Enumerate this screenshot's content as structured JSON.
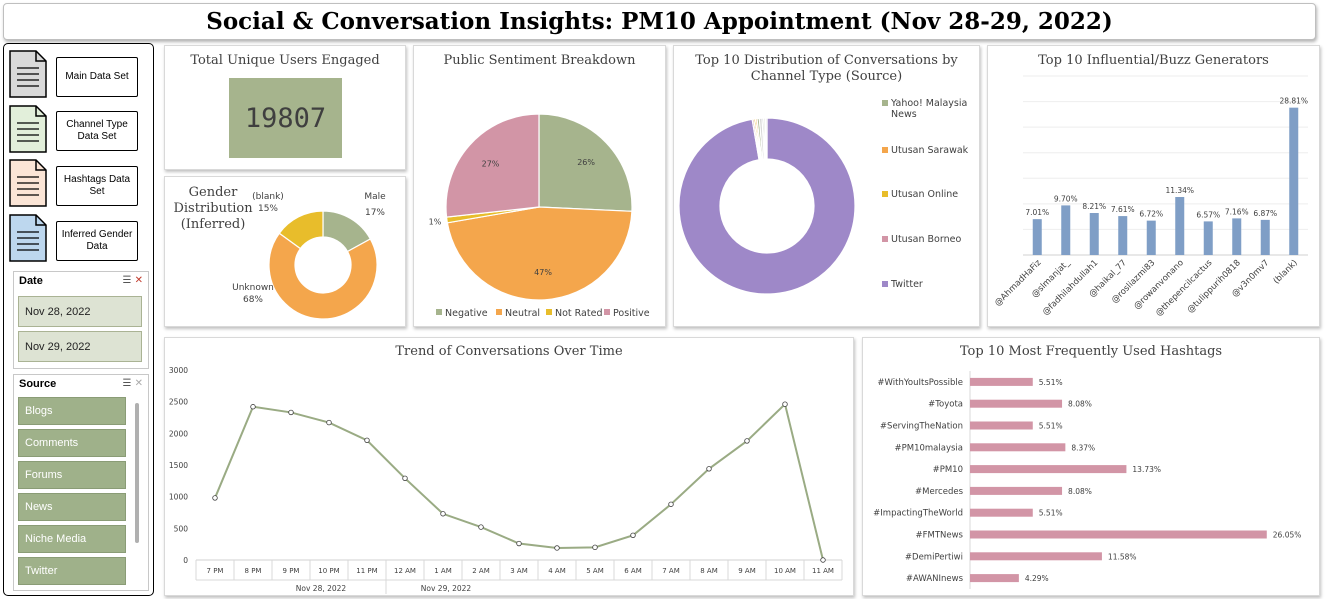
{
  "header": {
    "title": "Social & Conversation Insights: PM10 Appointment (Nov 28-29, 2022)"
  },
  "nav": {
    "buttons": [
      {
        "label": "Main Data Set",
        "color": "#d9d9d9"
      },
      {
        "label": "Channel Type Data Set",
        "color": "#e2efda"
      },
      {
        "label": "Hashtags Data Set",
        "color": "#fbe5d6"
      },
      {
        "label": "Inferred Gender Data",
        "color": "#bdd7ee"
      }
    ]
  },
  "slicers": {
    "date": {
      "title": "Date",
      "items": [
        "Nov 28, 2022",
        "Nov 29, 2022"
      ]
    },
    "source": {
      "title": "Source",
      "items": [
        "Blogs",
        "Comments",
        "Forums",
        "News",
        "Niche Media",
        "Twitter"
      ]
    }
  },
  "kpi": {
    "title": "Total Unique Users Engaged",
    "value": "19807",
    "color": "#a6b48d"
  },
  "gender": {
    "title_lines": [
      "Gender",
      "Distribution",
      "(Inferred)"
    ],
    "chart_data": {
      "type": "doughnut",
      "slices": [
        {
          "name": "Male",
          "value": 17,
          "label": "17%",
          "color": "#a6b48d"
        },
        {
          "name": "Unknown",
          "value": 68,
          "label": "68%",
          "color": "#f4a64c"
        },
        {
          "name": "(blank)",
          "value": 15,
          "label": "15%",
          "color": "#e8bd2b"
        }
      ]
    }
  },
  "sentiment": {
    "title": "Public Sentiment Breakdown",
    "chart_data": {
      "type": "pie",
      "slices": [
        {
          "name": "Negative",
          "value": 26,
          "label": "26%",
          "color": "#a6b48d"
        },
        {
          "name": "Neutral",
          "value": 47,
          "label": "47%",
          "color": "#f4a64c"
        },
        {
          "name": "Not Rated",
          "value": 1,
          "label": "1%",
          "color": "#e8bd2b"
        },
        {
          "name": "Positive",
          "value": 27,
          "label": "27%",
          "color": "#d295a6"
        }
      ]
    }
  },
  "channel": {
    "title_lines": [
      "Top 10 Distribution of Conversations by",
      "Channel Type (Source)"
    ],
    "chart_data": {
      "type": "doughnut",
      "legend": [
        "Yahoo! Malaysia News",
        "Utusan Sarawak",
        "Utusan Online",
        "Utusan Borneo",
        "Twitter"
      ],
      "slices": [
        {
          "name": "Twitter",
          "value": 97.3,
          "color": "#9e88c8"
        },
        {
          "name": "Utusan Borneo",
          "value": 0.3,
          "color": "#d295a6"
        },
        {
          "name": "Utusan Online",
          "value": 0.3,
          "color": "#e8bd2b"
        },
        {
          "name": "Utusan Sarawak",
          "value": 0.3,
          "color": "#f4a64c"
        },
        {
          "name": "Yahoo! Malaysia News",
          "value": 0.4,
          "color": "#a6b48d"
        },
        {
          "name": "",
          "value": 0.5,
          "color": "#d9d9d9"
        },
        {
          "name": "",
          "value": 0.3,
          "color": "#bfbfbf"
        },
        {
          "name": "",
          "value": 0.3,
          "color": "#cfd6c4"
        },
        {
          "name": "",
          "value": 0.3,
          "color": "#e7e6e6"
        }
      ],
      "legend_colors": [
        "#a6b48d",
        "#f4a64c",
        "#e8bd2b",
        "#d295a6",
        "#9e88c8"
      ]
    }
  },
  "buzz": {
    "title": "Top 10 Influential/Buzz Generators",
    "chart_data": {
      "type": "bar",
      "categories": [
        "@AhmadHaFiz",
        "@slmanjat_",
        "@fadhilahdullah1",
        "@haikal_77",
        "@rosliazmi83",
        "@rowanvonano",
        "@thepencilcactus",
        "@tulippurih0818",
        "@v3n0mv7",
        "(blank)"
      ],
      "values": [
        7.01,
        9.7,
        8.21,
        7.61,
        6.72,
        11.34,
        6.57,
        7.16,
        6.87,
        28.81
      ],
      "labels": [
        "7.01%",
        "9.70%",
        "8.21%",
        "7.61%",
        "6.72%",
        "11.34%",
        "6.57%",
        "7.16%",
        "6.87%",
        "28.81%"
      ],
      "color": "#7f9ec6",
      "ylim": [
        0,
        35
      ]
    }
  },
  "trend": {
    "title": "Trend of Conversations Over Time",
    "chart_data": {
      "type": "line",
      "x": [
        "7 PM",
        "8 PM",
        "9 PM",
        "10 PM",
        "11 PM",
        "12 AM",
        "1 AM",
        "2 AM",
        "3 AM",
        "4 AM",
        "5 AM",
        "6 AM",
        "7 AM",
        "8 AM",
        "9 AM",
        "10 AM",
        "11 AM"
      ],
      "values": [
        980,
        2420,
        2330,
        2170,
        1890,
        1290,
        730,
        520,
        260,
        190,
        200,
        390,
        880,
        1440,
        1880,
        2460,
        0
      ],
      "groups": [
        {
          "label": "Nov 28, 2022",
          "count": 5
        },
        {
          "label": "Nov 29, 2022",
          "count": 12
        }
      ],
      "yticks": [
        "0",
        "500",
        "1000",
        "1500",
        "2000",
        "2500",
        "3000"
      ],
      "ylim": [
        0,
        3000
      ],
      "color": "#9aab84"
    }
  },
  "hashtags": {
    "title": "Top 10 Most Frequently Used Hashtags",
    "chart_data": {
      "type": "bar",
      "categories": [
        "#WithYouItsPossible",
        "#Toyota",
        "#ServingTheNation",
        "#PM10malaysia",
        "#PM10",
        "#Mercedes",
        "#ImpactingTheWorld",
        "#FMTNews",
        "#DemiPertiwi",
        "#AWANInews"
      ],
      "values": [
        5.51,
        8.08,
        5.51,
        8.37,
        13.73,
        8.08,
        5.51,
        26.05,
        11.58,
        4.29
      ],
      "labels": [
        "5.51%",
        "8.08%",
        "5.51%",
        "8.37%",
        "13.73%",
        "8.08%",
        "5.51%",
        "26.05%",
        "11.58%",
        "4.29%"
      ],
      "color": "#d295a6",
      "xlim": [
        0,
        28
      ]
    }
  }
}
